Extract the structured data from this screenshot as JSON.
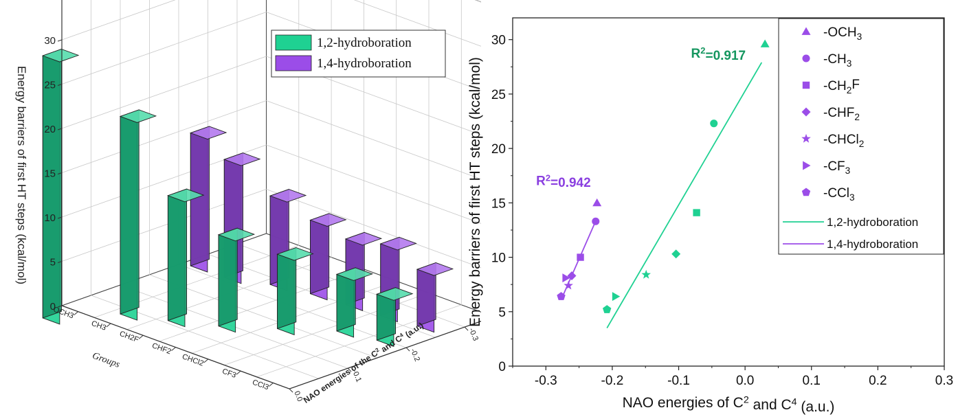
{
  "chart_data": [
    {
      "type": "bar3d",
      "zlabel": "Energy barriers of first HT steps (kcal/mol)",
      "ylabel": "Groups",
      "xlabel": "NAO energies of the C² and C⁴ (a.u.)",
      "groups": [
        "OCH3",
        "CH3",
        "CH2F",
        "CHF2",
        "CHCl2",
        "CF3",
        "CCl3"
      ],
      "z_ticks": [
        "0",
        "5",
        "10",
        "15",
        "20",
        "25",
        "30"
      ],
      "x_ticks": [
        "0.0",
        "-0.1",
        "-0.2",
        "-0.3"
      ],
      "zlim": [
        0,
        32
      ],
      "legend": [
        {
          "label": "1,2-hydroboration",
          "color": "#1fd192"
        },
        {
          "label": "1,4-hydroboration",
          "color": "#9b4de8"
        }
      ],
      "series": [
        {
          "name": "1,2-hydroboration",
          "color": "#1fd192",
          "x": [
            0.03,
            -0.047,
            -0.073,
            -0.104,
            -0.149,
            -0.195,
            -0.208
          ],
          "values": [
            29.6,
            22.3,
            14.1,
            10.3,
            8.4,
            6.4,
            5.2
          ]
        },
        {
          "name": "1,4-hydroboration",
          "color": "#9b4de8",
          "x": [
            -0.223,
            -0.225,
            -0.248,
            -0.261,
            -0.266,
            -0.27,
            -0.277
          ],
          "values": [
            15.0,
            13.3,
            10.0,
            8.3,
            7.4,
            8.1,
            6.4
          ]
        }
      ]
    },
    {
      "type": "scatter",
      "xlabel": "NAO energies of C² and C⁴ (a.u.)",
      "ylabel": "Energy barriers of first HT steps (kcal/mol)",
      "xlim": [
        -0.35,
        0.3
      ],
      "ylim": [
        0,
        32
      ],
      "x_ticks": [
        "-0.3",
        "-0.2",
        "-0.1",
        "0.0",
        "0.1",
        "0.2",
        "0.3"
      ],
      "y_ticks": [
        "0",
        "5",
        "10",
        "15",
        "20",
        "25",
        "30"
      ],
      "legend_entries": [
        {
          "label": "-OCH3",
          "marker": "triangle"
        },
        {
          "label": "-CH3",
          "marker": "circle"
        },
        {
          "label": "-CH2F",
          "marker": "square"
        },
        {
          "label": "-CHF2",
          "marker": "diamond"
        },
        {
          "label": "-CHCl2",
          "marker": "star"
        },
        {
          "label": "-CF3",
          "marker": "triangle-right"
        },
        {
          "label": "-CCl3",
          "marker": "pentagon"
        },
        {
          "label": "1,2-hydroboration",
          "marker": "line"
        },
        {
          "label": "1,4-hydroboration",
          "marker": "line"
        }
      ],
      "annotations": [
        {
          "text": "R²=0.917",
          "color": "#15965f",
          "series": "1,2-hydroboration"
        },
        {
          "text": "R²=0.942",
          "color": "#8a3fe0",
          "series": "1,4-hydroboration"
        }
      ],
      "series": [
        {
          "name": "1,2-hydroboration",
          "color": "#1fd192",
          "points": [
            {
              "x": 0.03,
              "y": 29.6,
              "marker": "triangle"
            },
            {
              "x": -0.047,
              "y": 22.3,
              "marker": "circle"
            },
            {
              "x": -0.073,
              "y": 14.1,
              "marker": "square"
            },
            {
              "x": -0.104,
              "y": 10.3,
              "marker": "diamond"
            },
            {
              "x": -0.149,
              "y": 8.4,
              "marker": "star"
            },
            {
              "x": -0.195,
              "y": 6.4,
              "marker": "triangle-right"
            },
            {
              "x": -0.208,
              "y": 5.2,
              "marker": "pentagon"
            }
          ],
          "fit": {
            "x": [
              -0.208,
              0.025
            ],
            "y": [
              3.5,
              27.9
            ]
          }
        },
        {
          "name": "1,4-hydroboration",
          "color": "#9b4de8",
          "points": [
            {
              "x": -0.223,
              "y": 15.0,
              "marker": "triangle"
            },
            {
              "x": -0.225,
              "y": 13.3,
              "marker": "circle"
            },
            {
              "x": -0.248,
              "y": 10.0,
              "marker": "square"
            },
            {
              "x": -0.261,
              "y": 8.3,
              "marker": "diamond"
            },
            {
              "x": -0.266,
              "y": 7.4,
              "marker": "star"
            },
            {
              "x": -0.27,
              "y": 8.1,
              "marker": "triangle-right"
            },
            {
              "x": -0.277,
              "y": 6.4,
              "marker": "pentagon"
            }
          ],
          "fit": {
            "x": [
              -0.277,
              -0.223
            ],
            "y": [
              6.1,
              13.6
            ]
          }
        }
      ]
    }
  ]
}
